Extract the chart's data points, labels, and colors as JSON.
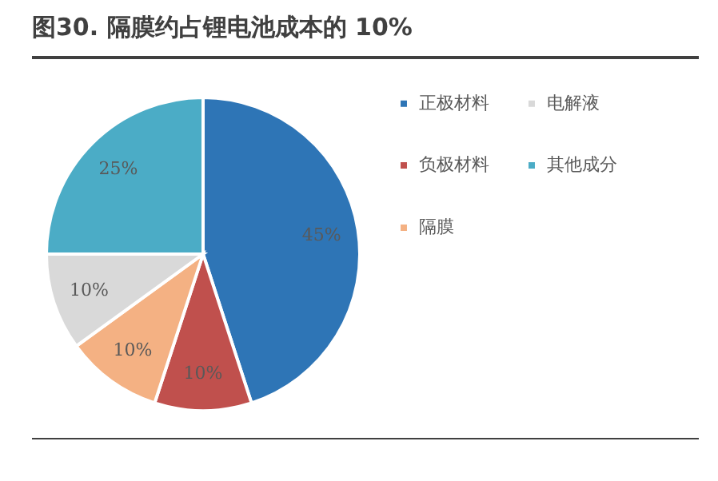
{
  "chart_data": {
    "type": "pie",
    "title": "图30. 隔膜约占锂电池成本的 10%",
    "categories": [
      "正极材料",
      "负极材料",
      "隔膜",
      "电解液",
      "其他成分"
    ],
    "values": [
      45,
      10,
      10,
      10,
      25
    ],
    "colors": [
      "#2e75b6",
      "#c0504d",
      "#f4b183",
      "#d9d9d9",
      "#4bacc6"
    ],
    "value_labels": [
      "45%",
      "10%",
      "10%",
      "10%",
      "25%"
    ],
    "legend": "right"
  }
}
